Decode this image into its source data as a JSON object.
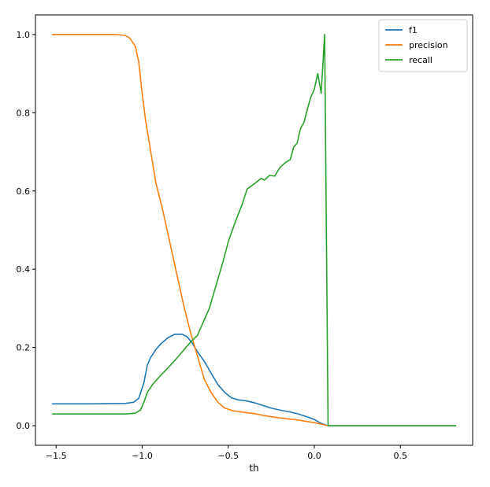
{
  "chart_data": {
    "type": "line",
    "title": "",
    "xlabel": "th",
    "ylabel": "",
    "xlim": [
      -1.62,
      0.92
    ],
    "ylim": [
      -0.05,
      1.05
    ],
    "grid": false,
    "legend_position": "top-right",
    "xticks": [
      -1.5,
      -1.0,
      -0.5,
      0.0,
      0.5
    ],
    "xtick_labels": [
      "−1.5",
      "−1.0",
      "−0.5",
      "0.0",
      "0.5"
    ],
    "yticks": [
      0.0,
      0.2,
      0.4,
      0.6,
      0.8,
      1.0
    ],
    "ytick_labels": [
      "0.0",
      "0.2",
      "0.4",
      "0.6",
      "0.8",
      "1.0"
    ],
    "series": [
      {
        "name": "f1",
        "color": "#1f77b4",
        "points": [
          [
            -1.52,
            0.056
          ],
          [
            -1.3,
            0.056
          ],
          [
            -1.1,
            0.057
          ],
          [
            -1.05,
            0.06
          ],
          [
            -1.02,
            0.07
          ],
          [
            -0.99,
            0.11
          ],
          [
            -0.97,
            0.155
          ],
          [
            -0.95,
            0.175
          ],
          [
            -0.92,
            0.195
          ],
          [
            -0.89,
            0.21
          ],
          [
            -0.85,
            0.225
          ],
          [
            -0.81,
            0.234
          ],
          [
            -0.77,
            0.234
          ],
          [
            -0.74,
            0.228
          ],
          [
            -0.71,
            0.212
          ],
          [
            -0.68,
            0.19
          ],
          [
            -0.64,
            0.165
          ],
          [
            -0.6,
            0.135
          ],
          [
            -0.56,
            0.105
          ],
          [
            -0.52,
            0.085
          ],
          [
            -0.48,
            0.071
          ],
          [
            -0.44,
            0.066
          ],
          [
            -0.4,
            0.064
          ],
          [
            -0.35,
            0.059
          ],
          [
            -0.3,
            0.052
          ],
          [
            -0.25,
            0.045
          ],
          [
            -0.2,
            0.04
          ],
          [
            -0.15,
            0.036
          ],
          [
            -0.1,
            0.031
          ],
          [
            -0.05,
            0.024
          ],
          [
            0.0,
            0.016
          ],
          [
            0.04,
            0.006
          ],
          [
            0.08,
            0.0
          ],
          [
            0.15,
            0.0
          ],
          [
            0.5,
            0.0
          ],
          [
            0.82,
            0.0
          ]
        ]
      },
      {
        "name": "precision",
        "color": "#ff7f0e",
        "points": [
          [
            -1.52,
            1.0
          ],
          [
            -1.3,
            1.0
          ],
          [
            -1.15,
            1.0
          ],
          [
            -1.1,
            0.998
          ],
          [
            -1.07,
            0.99
          ],
          [
            -1.04,
            0.97
          ],
          [
            -1.02,
            0.93
          ],
          [
            -1.0,
            0.85
          ],
          [
            -0.98,
            0.78
          ],
          [
            -0.95,
            0.7
          ],
          [
            -0.92,
            0.62
          ],
          [
            -0.88,
            0.55
          ],
          [
            -0.84,
            0.47
          ],
          [
            -0.8,
            0.39
          ],
          [
            -0.76,
            0.31
          ],
          [
            -0.72,
            0.24
          ],
          [
            -0.68,
            0.18
          ],
          [
            -0.64,
            0.12
          ],
          [
            -0.6,
            0.085
          ],
          [
            -0.56,
            0.06
          ],
          [
            -0.52,
            0.045
          ],
          [
            -0.47,
            0.038
          ],
          [
            -0.42,
            0.035
          ],
          [
            -0.35,
            0.031
          ],
          [
            -0.28,
            0.025
          ],
          [
            -0.2,
            0.02
          ],
          [
            -0.1,
            0.015
          ],
          [
            0.0,
            0.008
          ],
          [
            0.04,
            0.004
          ],
          [
            0.08,
            0.0
          ],
          [
            0.2,
            0.0
          ],
          [
            0.5,
            0.0
          ],
          [
            0.82,
            0.0
          ]
        ]
      },
      {
        "name": "recall",
        "color": "#2ca02c",
        "points": [
          [
            -1.52,
            0.03
          ],
          [
            -1.3,
            0.03
          ],
          [
            -1.1,
            0.03
          ],
          [
            -1.04,
            0.032
          ],
          [
            -1.01,
            0.04
          ],
          [
            -0.99,
            0.06
          ],
          [
            -0.97,
            0.085
          ],
          [
            -0.94,
            0.105
          ],
          [
            -0.9,
            0.125
          ],
          [
            -0.85,
            0.148
          ],
          [
            -0.8,
            0.172
          ],
          [
            -0.75,
            0.198
          ],
          [
            -0.71,
            0.218
          ],
          [
            -0.68,
            0.23
          ],
          [
            -0.65,
            0.26
          ],
          [
            -0.61,
            0.3
          ],
          [
            -0.57,
            0.36
          ],
          [
            -0.53,
            0.42
          ],
          [
            -0.5,
            0.47
          ],
          [
            -0.46,
            0.52
          ],
          [
            -0.42,
            0.565
          ],
          [
            -0.39,
            0.605
          ],
          [
            -0.35,
            0.618
          ],
          [
            -0.31,
            0.632
          ],
          [
            -0.29,
            0.628
          ],
          [
            -0.26,
            0.64
          ],
          [
            -0.23,
            0.638
          ],
          [
            -0.2,
            0.66
          ],
          [
            -0.17,
            0.672
          ],
          [
            -0.14,
            0.68
          ],
          [
            -0.12,
            0.712
          ],
          [
            -0.1,
            0.722
          ],
          [
            -0.08,
            0.76
          ],
          [
            -0.06,
            0.775
          ],
          [
            -0.04,
            0.81
          ],
          [
            -0.02,
            0.84
          ],
          [
            0.0,
            0.86
          ],
          [
            0.02,
            0.9
          ],
          [
            0.04,
            0.85
          ],
          [
            0.06,
            1.0
          ],
          [
            0.08,
            0.0
          ],
          [
            0.2,
            0.0
          ],
          [
            0.5,
            0.0
          ],
          [
            0.82,
            0.0
          ]
        ]
      }
    ]
  }
}
